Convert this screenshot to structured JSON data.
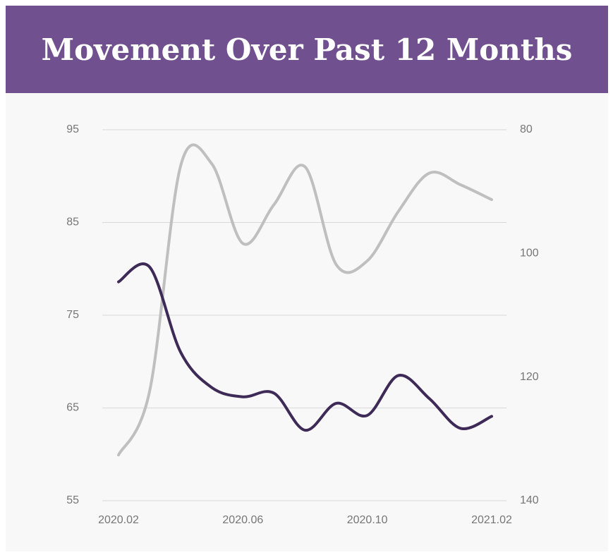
{
  "chart_data": {
    "type": "line",
    "title": "Movement Over Past 12 Months",
    "categories": [
      "2020.02",
      null,
      null,
      null,
      "2020.06",
      null,
      null,
      null,
      "2020.10",
      null,
      null,
      null,
      "2021.02"
    ],
    "series": [
      {
        "color": "#3e2a56",
        "values": [
          78.6,
          80.2,
          71.0,
          67.2,
          66.2,
          66.6,
          62.6,
          65.5,
          64.2,
          68.5,
          66.0,
          62.8,
          64.1
        ]
      },
      {
        "color": "#bfbfbf",
        "axis": "y2",
        "values": [
          132.6,
          122.3,
          85.8,
          85.5,
          98.4,
          92.1,
          86.0,
          101.8,
          101.2,
          93.2,
          87.0,
          88.9,
          91.3
        ]
      }
    ],
    "ylim": [
      55,
      95
    ],
    "yticks": [
      55,
      65,
      75,
      85,
      95
    ],
    "y2lim": [
      140,
      80
    ],
    "y2ticks": [
      80,
      100,
      120,
      140
    ],
    "y2_reversed": true,
    "grid": true
  }
}
